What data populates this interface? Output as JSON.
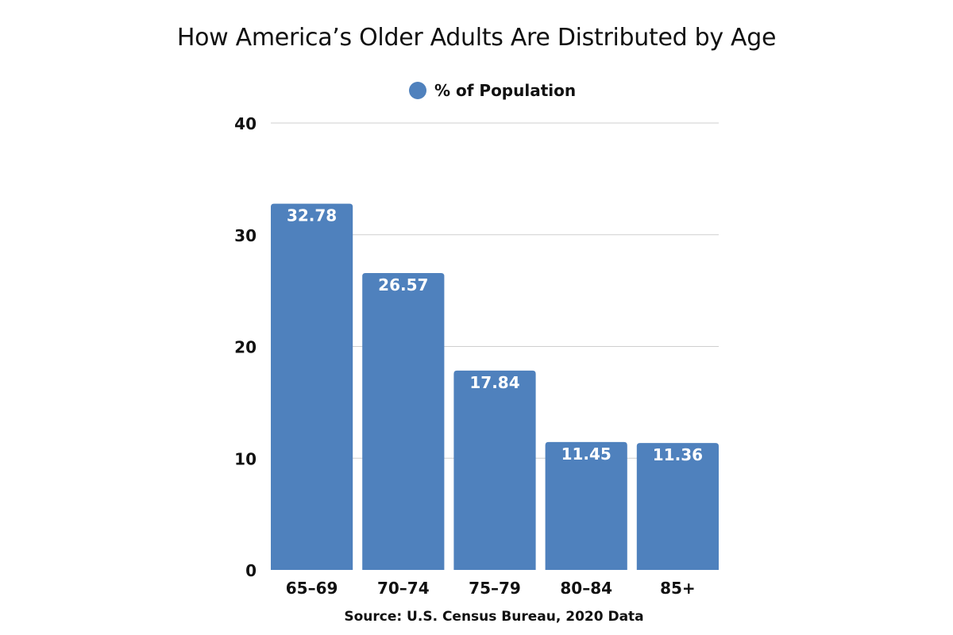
{
  "chart_data": {
    "type": "bar",
    "title": "How America’s Older Adults Are Distributed by Age",
    "xlabel": "",
    "ylabel": "",
    "categories": [
      "65–69",
      "70–74",
      "75–79",
      "80–84",
      "85+"
    ],
    "series": [
      {
        "name": "% of Population",
        "values": [
          32.78,
          26.57,
          17.84,
          11.45,
          11.36
        ],
        "color": "#4f81bd"
      }
    ],
    "data_labels": [
      "32.78",
      "26.57",
      "17.84",
      "11.45",
      "11.36"
    ],
    "ylim": [
      0,
      40
    ],
    "y_ticks": [
      0,
      10,
      20,
      30,
      40
    ],
    "grid": true,
    "legend_position": "top-center",
    "source": "Source: U.S. Census Bureau, 2020 Data"
  }
}
